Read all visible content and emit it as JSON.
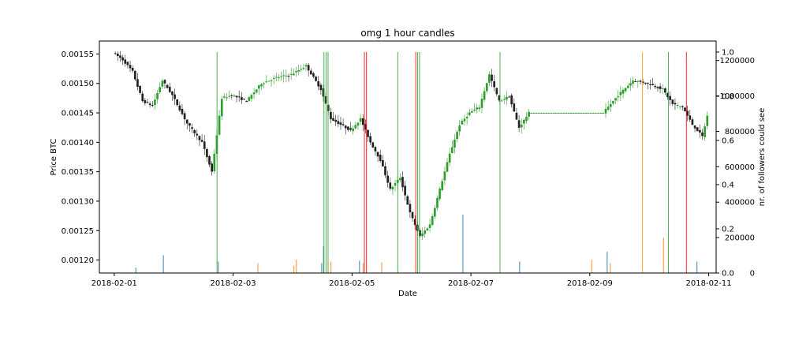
{
  "chart_data": {
    "type": "candlestick",
    "title": "omg 1 hour candles",
    "xlabel": "Date",
    "ylabel": "Price BTC",
    "ylabel_right": "nr. of followers could see",
    "x_ticks": [
      "2018-02-01",
      "2018-02-03",
      "2018-02-05",
      "2018-02-07",
      "2018-02-09",
      "2018-02-11"
    ],
    "x_range": [
      "2018-01-31T18:00",
      "2018-02-11T03:00"
    ],
    "y_ticks": [
      "0.00120",
      "0.00125",
      "0.00130",
      "0.00135",
      "0.00140",
      "0.00145",
      "0.00150",
      "0.00155"
    ],
    "ylim": [
      0.001178,
      0.001572
    ],
    "right_ticks": [
      "0",
      "200000",
      "400000",
      "600000",
      "800000",
      "1000000",
      "1200000"
    ],
    "right_ylim": [
      0,
      1310000
    ],
    "right_ticks_frac": [
      "0.0",
      "0.2",
      "0.4",
      "0.6",
      "0.8",
      "1.0"
    ],
    "price_path": [
      [
        "2018-02-01T00:00",
        0.001553
      ],
      [
        "2018-02-01T04:00",
        0.00154
      ],
      [
        "2018-02-01T08:00",
        0.00152
      ],
      [
        "2018-02-01T12:00",
        0.00147
      ],
      [
        "2018-02-01T16:00",
        0.001462
      ],
      [
        "2018-02-01T20:00",
        0.001505
      ],
      [
        "2018-02-02T00:00",
        0.00148
      ],
      [
        "2018-02-02T06:00",
        0.001432
      ],
      [
        "2018-02-02T12:00",
        0.0014
      ],
      [
        "2018-02-02T16:00",
        0.00135
      ],
      [
        "2018-02-02T20:00",
        0.001475
      ],
      [
        "2018-02-03T00:00",
        0.00148
      ],
      [
        "2018-02-03T06:00",
        0.00147
      ],
      [
        "2018-02-03T12:00",
        0.0015
      ],
      [
        "2018-02-03T18:00",
        0.00151
      ],
      [
        "2018-02-04T00:00",
        0.001515
      ],
      [
        "2018-02-04T06:00",
        0.00153
      ],
      [
        "2018-02-04T12:00",
        0.00149
      ],
      [
        "2018-02-04T16:00",
        0.00144
      ],
      [
        "2018-02-04T20:00",
        0.00143
      ],
      [
        "2018-02-05T00:00",
        0.00142
      ],
      [
        "2018-02-05T04:00",
        0.00144
      ],
      [
        "2018-02-05T08:00",
        0.0014
      ],
      [
        "2018-02-05T12:00",
        0.00137
      ],
      [
        "2018-02-05T16:00",
        0.00132
      ],
      [
        "2018-02-05T20:00",
        0.00134
      ],
      [
        "2018-02-06T00:00",
        0.00128
      ],
      [
        "2018-02-06T04:00",
        0.00124
      ],
      [
        "2018-02-06T08:00",
        0.00126
      ],
      [
        "2018-02-06T12:00",
        0.00132
      ],
      [
        "2018-02-06T16:00",
        0.00138
      ],
      [
        "2018-02-06T20:00",
        0.00143
      ],
      [
        "2018-02-07T00:00",
        0.00145
      ],
      [
        "2018-02-07T04:00",
        0.00146
      ],
      [
        "2018-02-07T08:00",
        0.001515
      ],
      [
        "2018-02-07T12:00",
        0.00147
      ],
      [
        "2018-02-07T16:00",
        0.001478
      ],
      [
        "2018-02-07T20:00",
        0.001425
      ],
      [
        "2018-02-08T00:00",
        0.00145
      ],
      [
        "2018-02-09T00:00",
        0.00145
      ],
      [
        "2018-02-09T06:00",
        0.00145
      ],
      [
        "2018-02-09T12:00",
        0.00148
      ],
      [
        "2018-02-09T18:00",
        0.001505
      ],
      [
        "2018-02-10T00:00",
        0.0015
      ],
      [
        "2018-02-10T06:00",
        0.00149
      ],
      [
        "2018-02-10T10:00",
        0.001465
      ],
      [
        "2018-02-10T14:00",
        0.00146
      ],
      [
        "2018-02-10T18:00",
        0.00143
      ],
      [
        "2018-02-10T22:00",
        0.00141
      ],
      [
        "2018-02-11T00:00",
        0.001445
      ]
    ],
    "signal_lines": [
      {
        "x": "2018-02-02T17:30",
        "color": "#2ca02c"
      },
      {
        "x": "2018-02-04T12:40",
        "color": "#2ca02c"
      },
      {
        "x": "2018-02-04T13:30",
        "color": "#2ca02c"
      },
      {
        "x": "2018-02-04T14:20",
        "color": "#2ca02c"
      },
      {
        "x": "2018-02-05T05:00",
        "color": "#ff0000"
      },
      {
        "x": "2018-02-05T05:50",
        "color": "#ff0000"
      },
      {
        "x": "2018-02-05T18:30",
        "color": "#2ca02c"
      },
      {
        "x": "2018-02-06T01:45",
        "color": "#ff0000"
      },
      {
        "x": "2018-02-06T02:30",
        "color": "#2ca02c"
      },
      {
        "x": "2018-02-06T03:15",
        "color": "#2ca02c"
      },
      {
        "x": "2018-02-07T11:45",
        "color": "#2ca02c"
      },
      {
        "x": "2018-02-09T21:15",
        "color": "#ff9900"
      },
      {
        "x": "2018-02-10T07:45",
        "color": "#2ca02c"
      },
      {
        "x": "2018-02-10T15:00",
        "color": "#ff0000"
      }
    ],
    "follower_bars": [
      {
        "x": "2018-02-01T08:45",
        "value": 30000,
        "color": "#1f77b4"
      },
      {
        "x": "2018-02-01T19:50",
        "value": 100000,
        "color": "#1f77b4"
      },
      {
        "x": "2018-02-02T18:00",
        "value": 65000,
        "color": "#1f77b4"
      },
      {
        "x": "2018-02-03T10:00",
        "value": 55000,
        "color": "#ff7f0e"
      },
      {
        "x": "2018-02-04T00:30",
        "value": 40000,
        "color": "#ff7f0e"
      },
      {
        "x": "2018-02-04T01:30",
        "value": 75000,
        "color": "#ff7f0e"
      },
      {
        "x": "2018-02-04T11:45",
        "value": 55000,
        "color": "#1f77b4"
      },
      {
        "x": "2018-02-04T12:30",
        "value": 150000,
        "color": "#1f77b4"
      },
      {
        "x": "2018-02-04T15:30",
        "value": 65000,
        "color": "#ff7f0e"
      },
      {
        "x": "2018-02-05T03:00",
        "value": 70000,
        "color": "#1f77b4"
      },
      {
        "x": "2018-02-05T04:30",
        "value": 55000,
        "color": "#ff7f0e"
      },
      {
        "x": "2018-02-05T12:00",
        "value": 60000,
        "color": "#ff7f0e"
      },
      {
        "x": "2018-02-06T20:45",
        "value": 330000,
        "color": "#1f77b4"
      },
      {
        "x": "2018-02-07T19:40",
        "value": 65000,
        "color": "#1f77b4"
      },
      {
        "x": "2018-02-09T00:45",
        "value": 75000,
        "color": "#ff7f0e"
      },
      {
        "x": "2018-02-09T07:00",
        "value": 120000,
        "color": "#1f77b4"
      },
      {
        "x": "2018-02-09T08:15",
        "value": 55000,
        "color": "#ff7f0e"
      },
      {
        "x": "2018-02-10T05:45",
        "value": 200000,
        "color": "#ff7f0e"
      },
      {
        "x": "2018-02-10T19:15",
        "value": 65000,
        "color": "#1f77b4"
      }
    ],
    "colors": {
      "up": "#2ca02c",
      "down": "#222222",
      "wick_up": "#2ca02c",
      "wick_down": "#222222"
    }
  }
}
